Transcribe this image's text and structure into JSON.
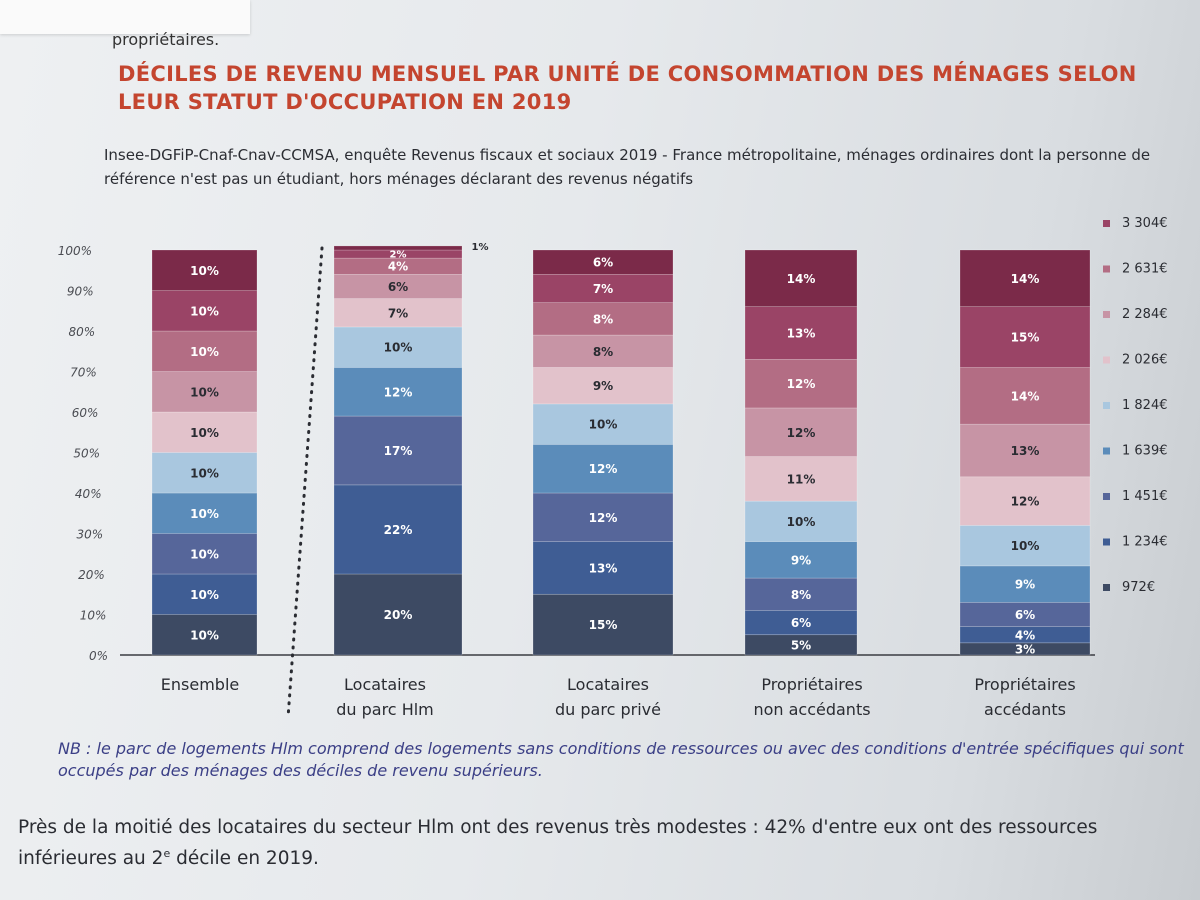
{
  "header_text": "propriétaires.",
  "title": "DÉCILES DE REVENU MENSUEL PAR UNITÉ DE CONSOMMATION  DES MÉNAGES SELON LEUR STATUT D'OCCUPATION EN 2019",
  "source": "Insee-DGFiP-Cnaf-Cnav-CCMSA, enquête Revenus fiscaux et sociaux 2019 - France métropolitaine, ménages ordinaires dont la personne de référence n'est pas un étudiant, hors ménages déclarant des revenus négatifs",
  "nb_note": "NB : le parc de logements Hlm comprend des logements sans conditions de ressources ou avec des conditions d'entrée spécifiques qui sont occupés par des ménages des déciles de revenu supérieurs.",
  "paragraph": {
    "before": "Près de la moitié des locataires du secteur Hlm ont des revenus très modestes : 42% d'entre eux ont des ressources inférieures au 2",
    "superscript": "e",
    "after": " décile en 2019."
  },
  "colors": {
    "d1": "#3d4a63",
    "d2": "#3f5d94",
    "d3": "#56669a",
    "d4": "#5b8cba",
    "d5": "#a9c7df",
    "d6": "#e2c2cb",
    "d7": "#c794a5",
    "d8": "#b36d84",
    "d9": "#9a4466",
    "d10": "#7b2a49"
  },
  "chart_data": {
    "type": "bar",
    "stacked": true,
    "title": "DÉCILES DE REVENU MENSUEL PAR UNITÉ DE CONSOMMATION  DES MÉNAGES SELON LEUR STATUT D'OCCUPATION EN 2019",
    "categories": [
      "Ensemble",
      "Locataires\ndu parc Hlm",
      "Locataires\ndu parc privé",
      "Propriétaires\nnon accédants",
      "Propriétaires\naccédants"
    ],
    "y_ticks": [
      "0%",
      "10%",
      "20%",
      "30%",
      "40%",
      "50%",
      "60%",
      "70%",
      "80%",
      "90%",
      "100%"
    ],
    "ylim": [
      0,
      100
    ],
    "series": [
      {
        "name": "972€",
        "values": [
          10,
          20,
          15,
          5,
          3
        ]
      },
      {
        "name": "1 234€",
        "values": [
          10,
          22,
          13,
          6,
          4
        ]
      },
      {
        "name": "1 451€",
        "values": [
          10,
          17,
          12,
          8,
          6
        ]
      },
      {
        "name": "1 639€",
        "values": [
          10,
          12,
          12,
          9,
          9
        ]
      },
      {
        "name": "1 824€",
        "values": [
          10,
          10,
          10,
          10,
          10
        ]
      },
      {
        "name": "2 026€",
        "values": [
          10,
          7,
          9,
          11,
          12
        ]
      },
      {
        "name": "2 284€",
        "values": [
          10,
          6,
          8,
          12,
          13
        ]
      },
      {
        "name": "2 631€",
        "values": [
          10,
          4,
          8,
          12,
          14
        ]
      },
      {
        "name": "3 304€",
        "values": [
          10,
          2,
          7,
          13,
          15
        ]
      },
      {
        "name": "",
        "values": [
          10,
          1,
          6,
          14,
          14
        ]
      }
    ],
    "grid": false,
    "legend_position": "right"
  }
}
